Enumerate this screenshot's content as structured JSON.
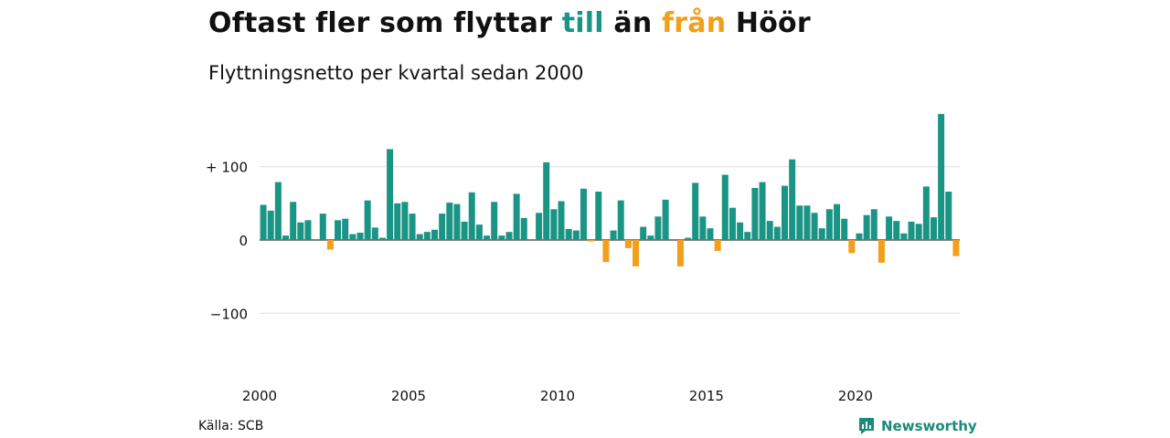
{
  "title": {
    "prefix": "Oftast fler som flyttar ",
    "till": "till",
    "mid": " än ",
    "fran": "från",
    "suffix": " Höör"
  },
  "subtitle": "Flyttningsnetto per kvartal sedan 2000",
  "source": "Källa: SCB",
  "brand": {
    "name": "Newsworthy",
    "icon": "newsworthy-logo-icon"
  },
  "colors": {
    "positive": "#1a9585",
    "negative": "#f29f1b",
    "grid": "#dddddd",
    "zero_line": "#333333",
    "brand": "#1a8a7a"
  },
  "chart_data": {
    "type": "bar",
    "ylim": [
      -160,
      180
    ],
    "yticks": [
      -100,
      0,
      100
    ],
    "ytick_labels": [
      "−100",
      "0",
      "+ 100"
    ],
    "xtick_labels": [
      "2000",
      "2005",
      "2010",
      "2015",
      "2020"
    ],
    "xtick_quarter_index": [
      0,
      20,
      40,
      60,
      80
    ],
    "grid": true,
    "start": "2000 Q1",
    "values": [
      48,
      40,
      79,
      6,
      52,
      24,
      27,
      0,
      36,
      -13,
      27,
      29,
      8,
      10,
      54,
      17,
      3,
      124,
      50,
      52,
      36,
      8,
      11,
      14,
      36,
      51,
      49,
      25,
      65,
      21,
      6,
      52,
      6,
      11,
      63,
      30,
      1,
      37,
      106,
      42,
      53,
      15,
      13,
      70,
      -2,
      66,
      -30,
      13,
      54,
      -11,
      -36,
      18,
      6,
      32,
      55,
      0,
      -36,
      3,
      78,
      32,
      16,
      -15,
      89,
      44,
      24,
      11,
      71,
      79,
      26,
      18,
      74,
      110,
      47,
      47,
      37,
      16,
      42,
      49,
      29,
      -18,
      9,
      34,
      42,
      -31,
      32,
      26,
      9,
      25,
      22,
      73,
      31,
      172,
      66,
      -22
    ]
  }
}
